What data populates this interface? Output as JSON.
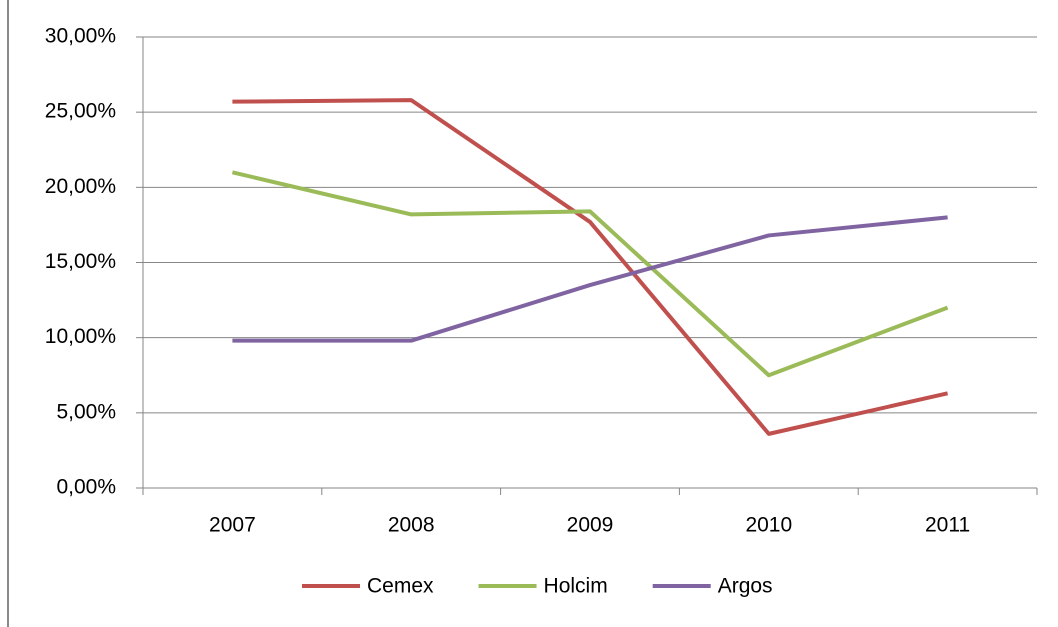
{
  "chart_data": {
    "type": "line",
    "categories": [
      "2007",
      "2008",
      "2009",
      "2010",
      "2011"
    ],
    "series": [
      {
        "name": "Cemex",
        "color": "#c0504d",
        "values": [
          25.7,
          25.8,
          17.7,
          3.6,
          6.3
        ]
      },
      {
        "name": "Holcim",
        "color": "#9bbb59",
        "values": [
          21.0,
          18.2,
          18.4,
          7.5,
          12.0
        ]
      },
      {
        "name": "Argos",
        "color": "#8064a2",
        "values": [
          9.8,
          9.8,
          13.5,
          16.8,
          18.0
        ]
      }
    ],
    "ylim": [
      0,
      30
    ],
    "yticks": [
      {
        "value": 0,
        "label": "0,00%"
      },
      {
        "value": 5,
        "label": "5,00%"
      },
      {
        "value": 10,
        "label": "10,00%"
      },
      {
        "value": 15,
        "label": "15,00%"
      },
      {
        "value": 20,
        "label": "20,00%"
      },
      {
        "value": 25,
        "label": "25,00%"
      },
      {
        "value": 30,
        "label": "30,00%"
      }
    ],
    "grid": true,
    "legend": "bottom"
  }
}
